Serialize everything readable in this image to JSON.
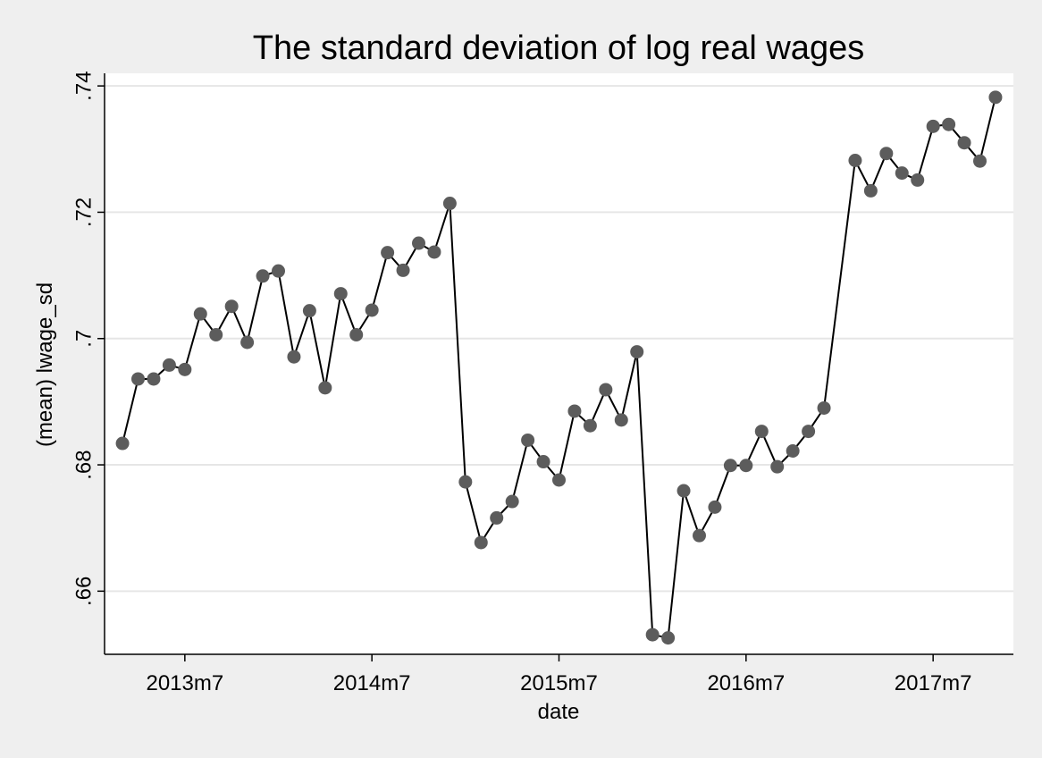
{
  "chart_data": {
    "type": "line",
    "title": "The standard deviation of log real wages",
    "xlabel": "date",
    "ylabel": "(mean) lwage_sd",
    "ylim": [
      0.65,
      0.742
    ],
    "xlim": [
      "2013-02",
      "2017-12"
    ],
    "y_ticks": [
      ".66",
      ".68",
      ".7",
      ".72",
      ".74"
    ],
    "y_tick_values": [
      0.66,
      0.68,
      0.7,
      0.72,
      0.74
    ],
    "x_ticks": [
      "2013m7",
      "2014m7",
      "2015m7",
      "2016m7",
      "2017m7"
    ],
    "x_tick_values": [
      "2013-07",
      "2014-07",
      "2015-07",
      "2016-07",
      "2017-07"
    ],
    "grid": true,
    "colors": {
      "background": "#efefef",
      "plot_area": "#ffffff",
      "marker": "#5c5c5c",
      "line": "#000000",
      "grid": "#e6e6e6"
    },
    "series": [
      {
        "x": [
          "2013-03",
          "2013-04",
          "2013-05",
          "2013-06",
          "2013-07",
          "2013-08",
          "2013-09",
          "2013-10",
          "2013-11",
          "2013-12",
          "2014-01",
          "2014-02",
          "2014-03",
          "2014-04",
          "2014-05",
          "2014-06",
          "2014-07",
          "2014-08",
          "2014-09",
          "2014-10",
          "2014-11",
          "2014-12",
          "2015-01",
          "2015-02",
          "2015-03",
          "2015-04",
          "2015-05",
          "2015-06",
          "2015-07",
          "2015-08",
          "2015-09",
          "2015-10",
          "2015-11",
          "2015-12",
          "2016-01",
          "2016-02",
          "2016-03",
          "2016-04",
          "2016-05",
          "2016-06",
          "2016-07",
          "2016-08",
          "2016-09",
          "2016-10",
          "2016-11",
          "2016-12",
          "2017-02",
          "2017-03",
          "2017-04",
          "2017-05",
          "2017-06",
          "2017-07",
          "2017-08",
          "2017-09",
          "2017-10",
          "2017-11"
        ],
        "y": [
          0.6834,
          0.6936,
          0.6936,
          0.6958,
          0.6951,
          0.7039,
          0.7006,
          0.7051,
          0.6994,
          0.7099,
          0.7107,
          0.6971,
          0.7044,
          0.6922,
          0.7071,
          0.7006,
          0.7045,
          0.7136,
          0.7108,
          0.7151,
          0.7137,
          0.7214,
          0.6773,
          0.6677,
          0.6716,
          0.6742,
          0.6839,
          0.6805,
          0.6776,
          0.6885,
          0.6862,
          0.6919,
          0.6871,
          0.6979,
          0.6531,
          0.6526,
          0.6759,
          0.6688,
          0.6733,
          0.6799,
          0.6799,
          0.6853,
          0.6797,
          0.6822,
          0.6853,
          0.689,
          0.7282,
          0.7234,
          0.7293,
          0.7262,
          0.7251,
          0.7336,
          0.7339,
          0.731,
          0.7281,
          0.7382
        ]
      }
    ]
  }
}
